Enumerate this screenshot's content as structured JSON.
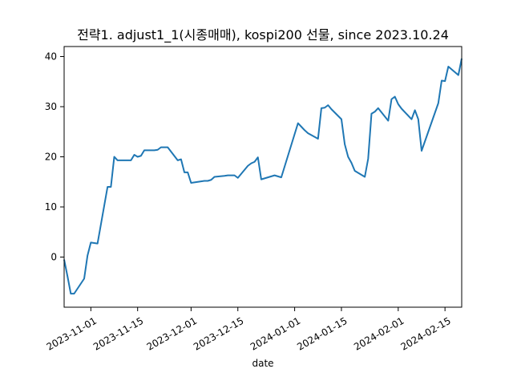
{
  "chart_data": {
    "type": "line",
    "title": "전략1. adjust1_1(시종매매), kospi200 선물, since 2023.10.24",
    "xlabel": "date",
    "ylabel": "",
    "xlim": [
      "2023-10-24",
      "2024-02-20"
    ],
    "ylim": [
      -10,
      42
    ],
    "xticks": [
      "2023-11-01",
      "2023-11-15",
      "2023-12-01",
      "2023-12-15",
      "2024-01-01",
      "2024-01-15",
      "2024-02-01",
      "2024-02-15"
    ],
    "yticks": [
      0,
      10,
      20,
      30,
      40
    ],
    "grid": false,
    "color": "#1f77b4",
    "series": [
      {
        "x": [
          "2023-10-24",
          "2023-10-25",
          "2023-10-26",
          "2023-10-27",
          "2023-10-30",
          "2023-10-31",
          "2023-11-01",
          "2023-11-02",
          "2023-11-03",
          "2023-11-06",
          "2023-11-07",
          "2023-11-08",
          "2023-11-09",
          "2023-11-10",
          "2023-11-13",
          "2023-11-14",
          "2023-11-15",
          "2023-11-16",
          "2023-11-17",
          "2023-11-20",
          "2023-11-21",
          "2023-11-22",
          "2023-11-23",
          "2023-11-24",
          "2023-11-27",
          "2023-11-28",
          "2023-11-29",
          "2023-11-30",
          "2023-12-01",
          "2023-12-04",
          "2023-12-05",
          "2023-12-06",
          "2023-12-07",
          "2023-12-08",
          "2023-12-11",
          "2023-12-12",
          "2023-12-13",
          "2023-12-14",
          "2023-12-15",
          "2023-12-18",
          "2023-12-19",
          "2023-12-20",
          "2023-12-21",
          "2023-12-22",
          "2023-12-26",
          "2023-12-27",
          "2023-12-28",
          "2024-01-02",
          "2024-01-03",
          "2024-01-04",
          "2024-01-05",
          "2024-01-08",
          "2024-01-09",
          "2024-01-10",
          "2024-01-11",
          "2024-01-12",
          "2024-01-15",
          "2024-01-16",
          "2024-01-17",
          "2024-01-18",
          "2024-01-19",
          "2024-01-22",
          "2024-01-23",
          "2024-01-24",
          "2024-01-25",
          "2024-01-26",
          "2024-01-29",
          "2024-01-30",
          "2024-01-31",
          "2024-02-01",
          "2024-02-02",
          "2024-02-05",
          "2024-02-06",
          "2024-02-07",
          "2024-02-08",
          "2024-02-13",
          "2024-02-14",
          "2024-02-15",
          "2024-02-16",
          "2024-02-19",
          "2024-02-20"
        ],
        "y": [
          -0.5,
          -3.8,
          -7.3,
          -7.3,
          -4.3,
          0.3,
          2.9,
          2.8,
          2.7,
          14.0,
          14.0,
          20.0,
          19.3,
          19.3,
          19.3,
          20.4,
          20.0,
          20.2,
          21.3,
          21.3,
          21.4,
          21.9,
          21.9,
          21.9,
          19.3,
          19.5,
          16.9,
          16.9,
          14.8,
          15.1,
          15.2,
          15.2,
          15.4,
          16.0,
          16.2,
          16.3,
          16.3,
          16.3,
          15.8,
          18.2,
          18.7,
          19.0,
          19.9,
          15.5,
          16.3,
          16.1,
          15.9,
          26.7,
          26.0,
          25.3,
          24.7,
          23.6,
          29.7,
          29.8,
          30.3,
          29.5,
          27.5,
          22.5,
          20.0,
          18.8,
          17.2,
          16.0,
          19.6,
          28.6,
          29.0,
          29.7,
          27.2,
          31.5,
          32.0,
          30.5,
          29.6,
          27.5,
          29.3,
          27.5,
          21.2,
          30.7,
          35.2,
          35.1,
          38.0,
          36.3,
          39.6
        ]
      }
    ]
  }
}
